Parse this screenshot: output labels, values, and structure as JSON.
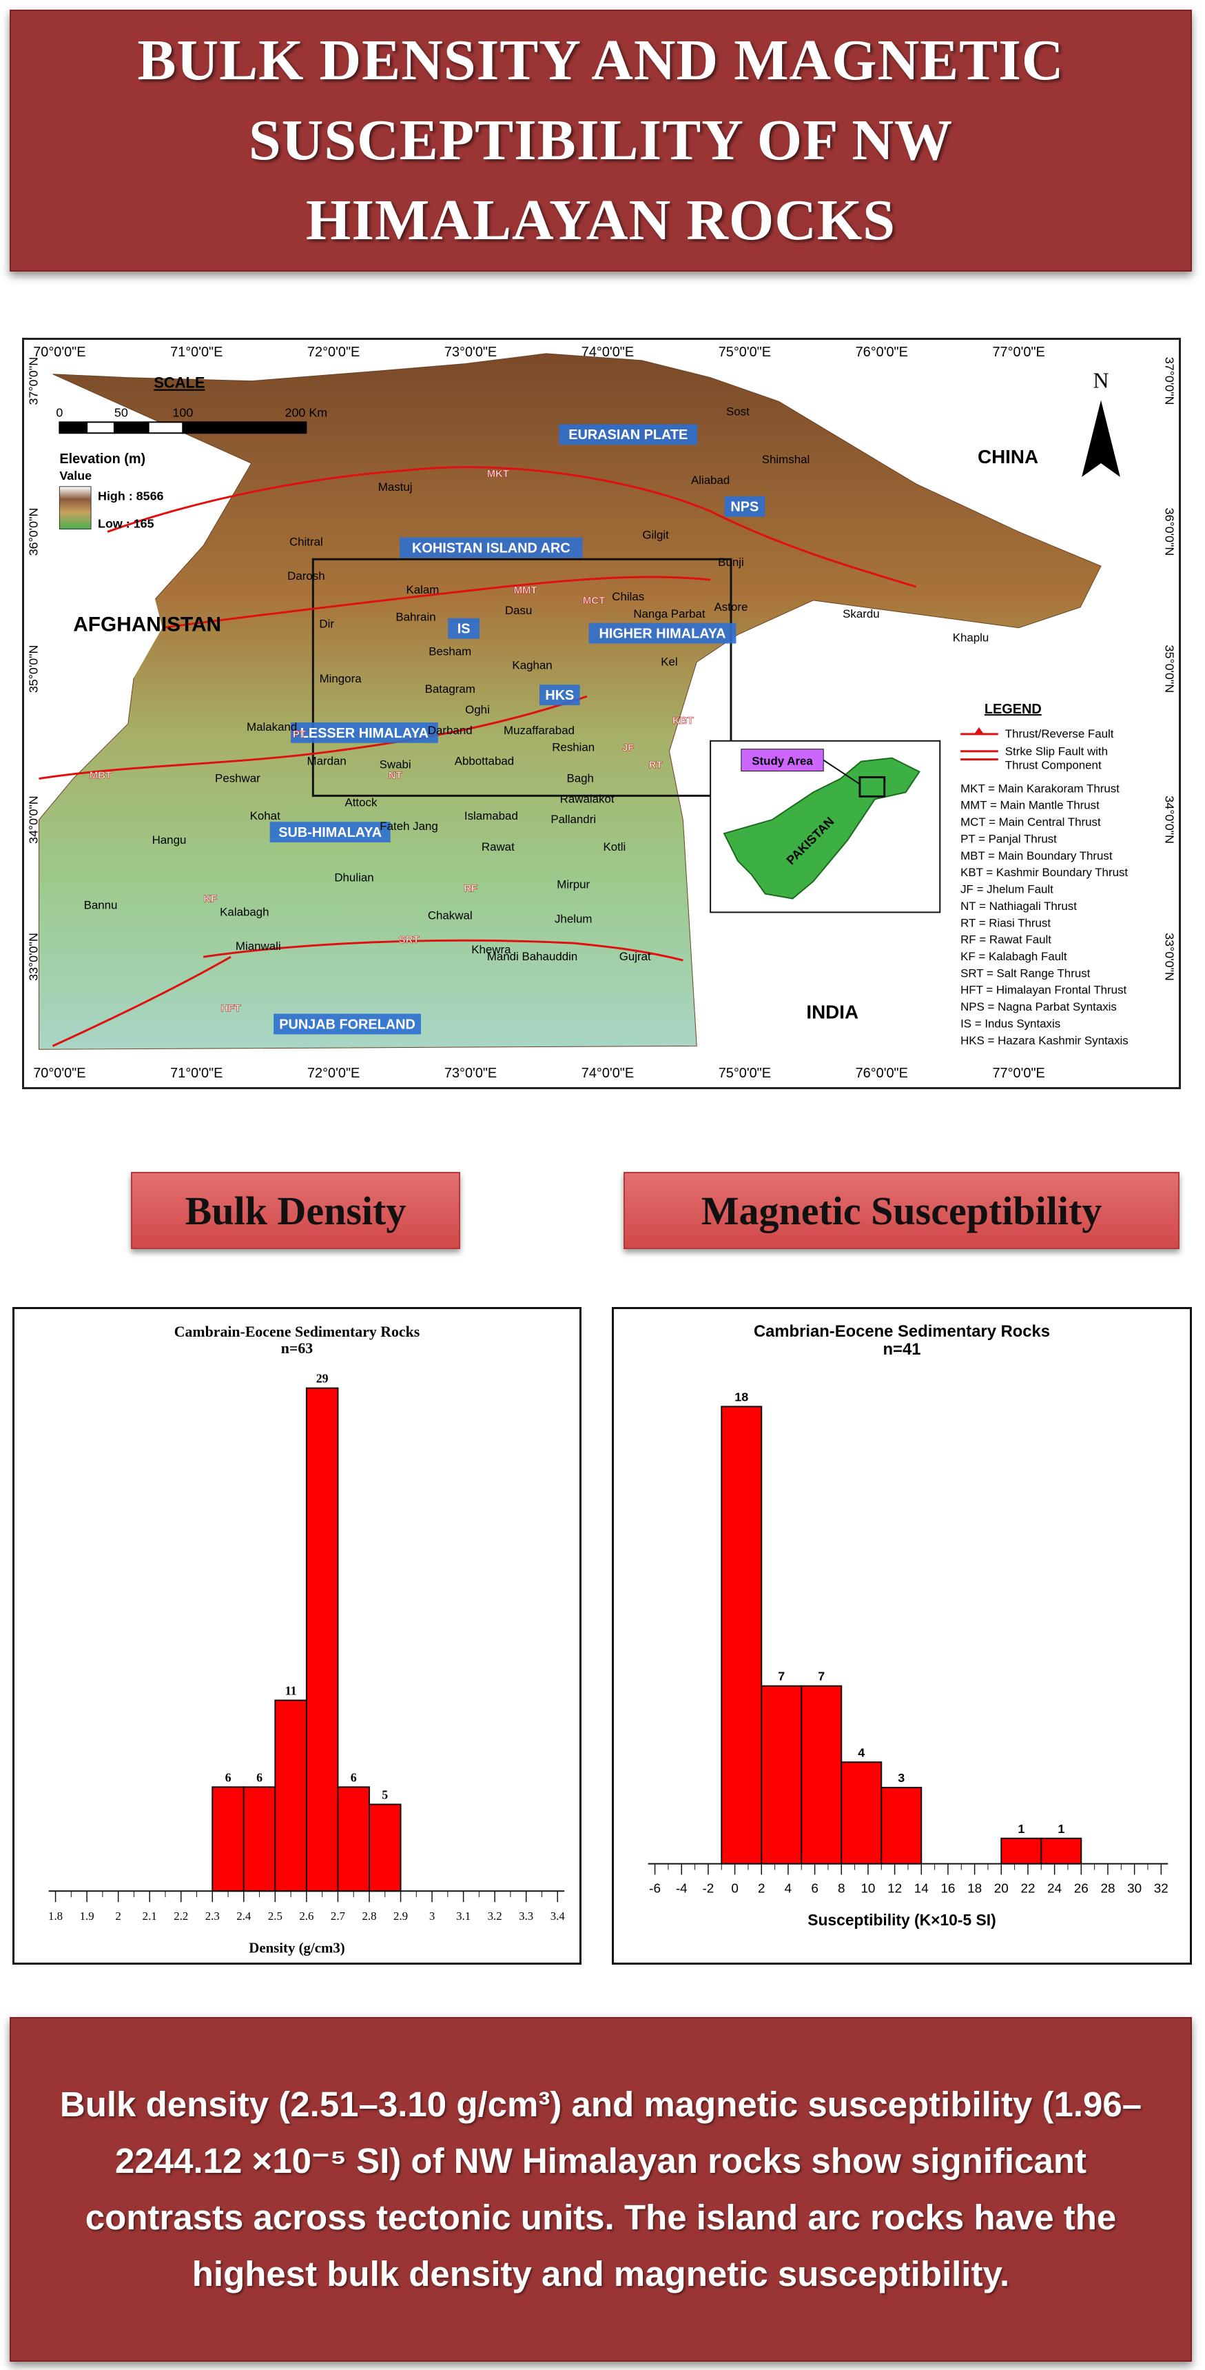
{
  "page": {
    "title": "BULK DENSITY AND MAGNETIC SUSCEPTIBILITY OF NW HIMALAYAN ROCKS",
    "summary": "Bulk density (2.51–3.10 g/cm³) and magnetic susceptibility (1.96–2244.12 ×10⁻⁵ SI) of NW Himalayan rocks show significant contrasts across tectonic units. The island arc rocks have the highest bulk density and magnetic susceptibility.",
    "section_density": "Bulk Density",
    "section_magnetic": "Magnetic Susceptibility"
  },
  "colors": {
    "banner": "#9b3535",
    "pill": "#d24848",
    "bar": "#ff0000",
    "study_area": "#cc66ff",
    "pakistan": "#3cb043"
  },
  "map": {
    "lon_labels": [
      "70°0'0\"E",
      "71°0'0\"E",
      "72°0'0\"E",
      "73°0'0\"E",
      "74°0'0\"E",
      "75°0'0\"E",
      "76°0'0\"E",
      "77°0'0\"E"
    ],
    "lat_labels": [
      "37°0'0\"N",
      "36°0'0\"N",
      "35°0'0\"N",
      "34°0'0\"N",
      "33°0'0\"N"
    ],
    "scale": {
      "title": "SCALE",
      "ticks": [
        "0",
        "50",
        "100",
        "200 Km"
      ]
    },
    "elevation": {
      "title": "Elevation (m)",
      "value": "Value",
      "high": "High : 8566",
      "low": "Low : 165"
    },
    "north": "N",
    "countries": {
      "china": "CHINA",
      "afghanistan": "AFGHANISTAN",
      "india": "INDIA",
      "pakistan": "PAKISTAN"
    },
    "units": [
      "EURASIAN PLATE",
      "KOHISTAN ISLAND ARC",
      "HIGHER HIMALAYA",
      "LESSER HIMALAYA",
      "SUB-HIMALAYA",
      "PUNJAB FORELAND",
      "NPS",
      "IS",
      "HKS"
    ],
    "places": [
      "Sost",
      "Shimshal",
      "Aliabad",
      "Mastuj",
      "Gilgit",
      "Chitral",
      "Bunji",
      "Darosh",
      "Kalam",
      "Chilas",
      "Astore",
      "Skardu",
      "Khaplu",
      "Bahrain",
      "Dasu",
      "Nanga Parbat",
      "Dir",
      "Besham",
      "Mingora",
      "Batagram",
      "Kaghan",
      "Kel",
      "Oghi",
      "Malakand",
      "Darband",
      "Muzaffarabad",
      "Mardan",
      "Swabi",
      "Abbottabad",
      "Reshian",
      "Peshwar",
      "Bagh",
      "Rawalakot",
      "Attock",
      "Pallandri",
      "Kohat",
      "Islamabad",
      "Fateh Jang",
      "Hangu",
      "Rawat",
      "Kotli",
      "Dhulian",
      "Mirpur",
      "Bannu",
      "Kalabagh",
      "Chakwal",
      "Jhelum",
      "Mianwali",
      "Khewra",
      "Mandi Bahauddin",
      "Gujrat"
    ],
    "fault_labels": [
      "MKT",
      "MMT",
      "MCT",
      "MBT",
      "PT",
      "NT",
      "KBT",
      "HFT",
      "SRT",
      "JF",
      "RT",
      "RF",
      "KF"
    ],
    "legend": {
      "title": "LEGEND",
      "items": [
        "Thrust/Reverse Fault",
        "Strke Slip Fault with",
        "Thrust Component"
      ],
      "abbrevs": [
        "MKT = Main Karakoram Thrust",
        "MMT = Main Mantle Thrust",
        "MCT = Main Central Thrust",
        "PT = Panjal Thrust",
        "MBT = Main Boundary Thrust",
        "KBT = Kashmir Boundary Thrust",
        "JF = Jhelum Fault",
        "NT = Nathiagali Thrust",
        "RT = Riasi Thrust",
        "RF = Rawat Fault",
        "KF = Kalabagh Fault",
        "SRT = Salt Range Thrust",
        "HFT = Himalayan Frontal Thrust",
        "NPS = Nagna Parbat Syntaxis",
        "IS = Indus Syntaxis",
        "HKS = Hazara Kashmir Syntaxis"
      ]
    },
    "inset": {
      "study_area": "Study Area"
    }
  },
  "chart_data": [
    {
      "type": "bar",
      "title": "Cambrain-Eocene Sedimentary Rocks",
      "subtitle": "n=63",
      "xlabel": "Density (g/cm3)",
      "xlim": [
        1.8,
        3.4
      ],
      "ticks": [
        "1.8",
        "1.9",
        "2",
        "2.1",
        "2.2",
        "2.3",
        "2.4",
        "2.5",
        "2.6",
        "2.7",
        "2.8",
        "2.9",
        "3",
        "3.1",
        "3.2",
        "3.3",
        "3.4"
      ],
      "bins": [
        {
          "x0": 2.3,
          "x1": 2.4,
          "count": 6
        },
        {
          "x0": 2.4,
          "x1": 2.5,
          "count": 6
        },
        {
          "x0": 2.5,
          "x1": 2.6,
          "count": 11
        },
        {
          "x0": 2.6,
          "x1": 2.7,
          "count": 29
        },
        {
          "x0": 2.7,
          "x1": 2.8,
          "count": 6
        },
        {
          "x0": 2.8,
          "x1": 2.9,
          "count": 5
        }
      ]
    },
    {
      "type": "bar",
      "title": "Cambrian-Eocene Sedimentary Rocks",
      "subtitle": "n=41",
      "xlabel": "Susceptibility (K×10-5 SI)",
      "xlim": [
        -6,
        32
      ],
      "ticks": [
        "-6",
        "-4",
        "-2",
        "0",
        "2",
        "4",
        "6",
        "8",
        "10",
        "12",
        "14",
        "16",
        "18",
        "20",
        "22",
        "24",
        "26",
        "28",
        "30",
        "32"
      ],
      "bins": [
        {
          "x0": -1,
          "x1": 2,
          "count": 18
        },
        {
          "x0": 2,
          "x1": 5,
          "count": 7
        },
        {
          "x0": 5,
          "x1": 8,
          "count": 7
        },
        {
          "x0": 8,
          "x1": 11,
          "count": 4
        },
        {
          "x0": 11,
          "x1": 14,
          "count": 3
        },
        {
          "x0": 20,
          "x1": 23,
          "count": 1
        },
        {
          "x0": 23,
          "x1": 26,
          "count": 1
        }
      ]
    }
  ]
}
